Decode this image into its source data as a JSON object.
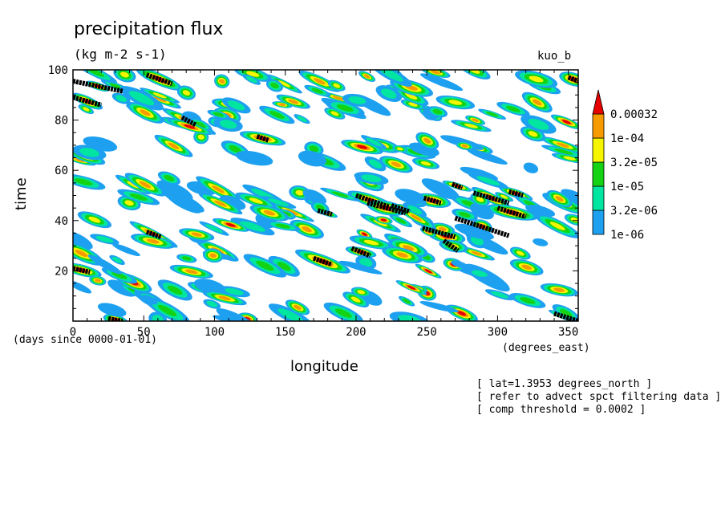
{
  "chart_data": {
    "type": "heatmap",
    "title": "precipitation flux",
    "units": "(kg m-2 s-1)",
    "run_name": "kuo_b",
    "xlabel": "longitude",
    "ylabel": "time",
    "x_units": "(degrees_east)",
    "time_units": "(days since 0000-01-01)",
    "xlim": [
      0,
      357
    ],
    "ylim": [
      0,
      100
    ],
    "x_ticks": [
      0,
      50,
      100,
      150,
      200,
      250,
      300,
      350
    ],
    "y_ticks": [
      20,
      40,
      60,
      80,
      100
    ],
    "colorbar": {
      "levels": [
        "1e-06",
        "3.2e-06",
        "1e-05",
        "3.2e-05",
        "1e-04",
        "0.00032"
      ],
      "colors": [
        "#1ea0f0",
        "#00e6a0",
        "#14d214",
        "#f5f500",
        "#f59b00",
        "#e60000"
      ]
    },
    "overlay": {
      "label": "comp threshold = 0.0002",
      "color": "#000000",
      "segments": [
        {
          "x": [
            0,
            35
          ],
          "y": [
            95.5,
            91.5
          ]
        },
        {
          "x": [
            0,
            20
          ],
          "y": [
            89,
            86
          ]
        },
        {
          "x": [
            52,
            70
          ],
          "y": [
            98,
            94.5
          ]
        },
        {
          "x": [
            77,
            87
          ],
          "y": [
            81,
            78
          ]
        },
        {
          "x": [
            130,
            138
          ],
          "y": [
            73.5,
            72
          ]
        },
        {
          "x": [
            173,
            183
          ],
          "y": [
            44,
            42.5
          ]
        },
        {
          "x": [
            170,
            183
          ],
          "y": [
            25,
            22.5
          ]
        },
        {
          "x": [
            200,
            223
          ],
          "y": [
            50,
            45.5
          ]
        },
        {
          "x": [
            208,
            235
          ],
          "y": [
            47,
            43
          ]
        },
        {
          "x": [
            225,
            238
          ],
          "y": [
            46,
            43.5
          ]
        },
        {
          "x": [
            197,
            210
          ],
          "y": [
            29,
            26
          ]
        },
        {
          "x": [
            247,
            270
          ],
          "y": [
            37,
            33.5
          ]
        },
        {
          "x": [
            248,
            260
          ],
          "y": [
            49,
            47
          ]
        },
        {
          "x": [
            262,
            272
          ],
          "y": [
            32,
            28
          ]
        },
        {
          "x": [
            268,
            275
          ],
          "y": [
            54.5,
            53
          ]
        },
        {
          "x": [
            270,
            308
          ],
          "y": [
            41,
            34
          ]
        },
        {
          "x": [
            283,
            308
          ],
          "y": [
            51,
            47
          ]
        },
        {
          "x": [
            300,
            320
          ],
          "y": [
            45,
            41.5
          ]
        },
        {
          "x": [
            308,
            318
          ],
          "y": [
            51.5,
            50
          ]
        },
        {
          "x": [
            52,
            62
          ],
          "y": [
            35.5,
            33.5
          ]
        },
        {
          "x": [
            0,
            12
          ],
          "y": [
            21,
            19.5
          ]
        },
        {
          "x": [
            340,
            357
          ],
          "y": [
            3,
            0
          ]
        },
        {
          "x": [
            350,
            357
          ],
          "y": [
            97,
            95.5
          ]
        },
        {
          "x": [
            25,
            35
          ],
          "y": [
            1,
            0
          ]
        }
      ]
    }
  },
  "notes": [
    "[ lat=1.3953 degrees_north ]",
    "[ refer to advect spct filtering data ]",
    "[ comp threshold = 0.0002 ]"
  ]
}
